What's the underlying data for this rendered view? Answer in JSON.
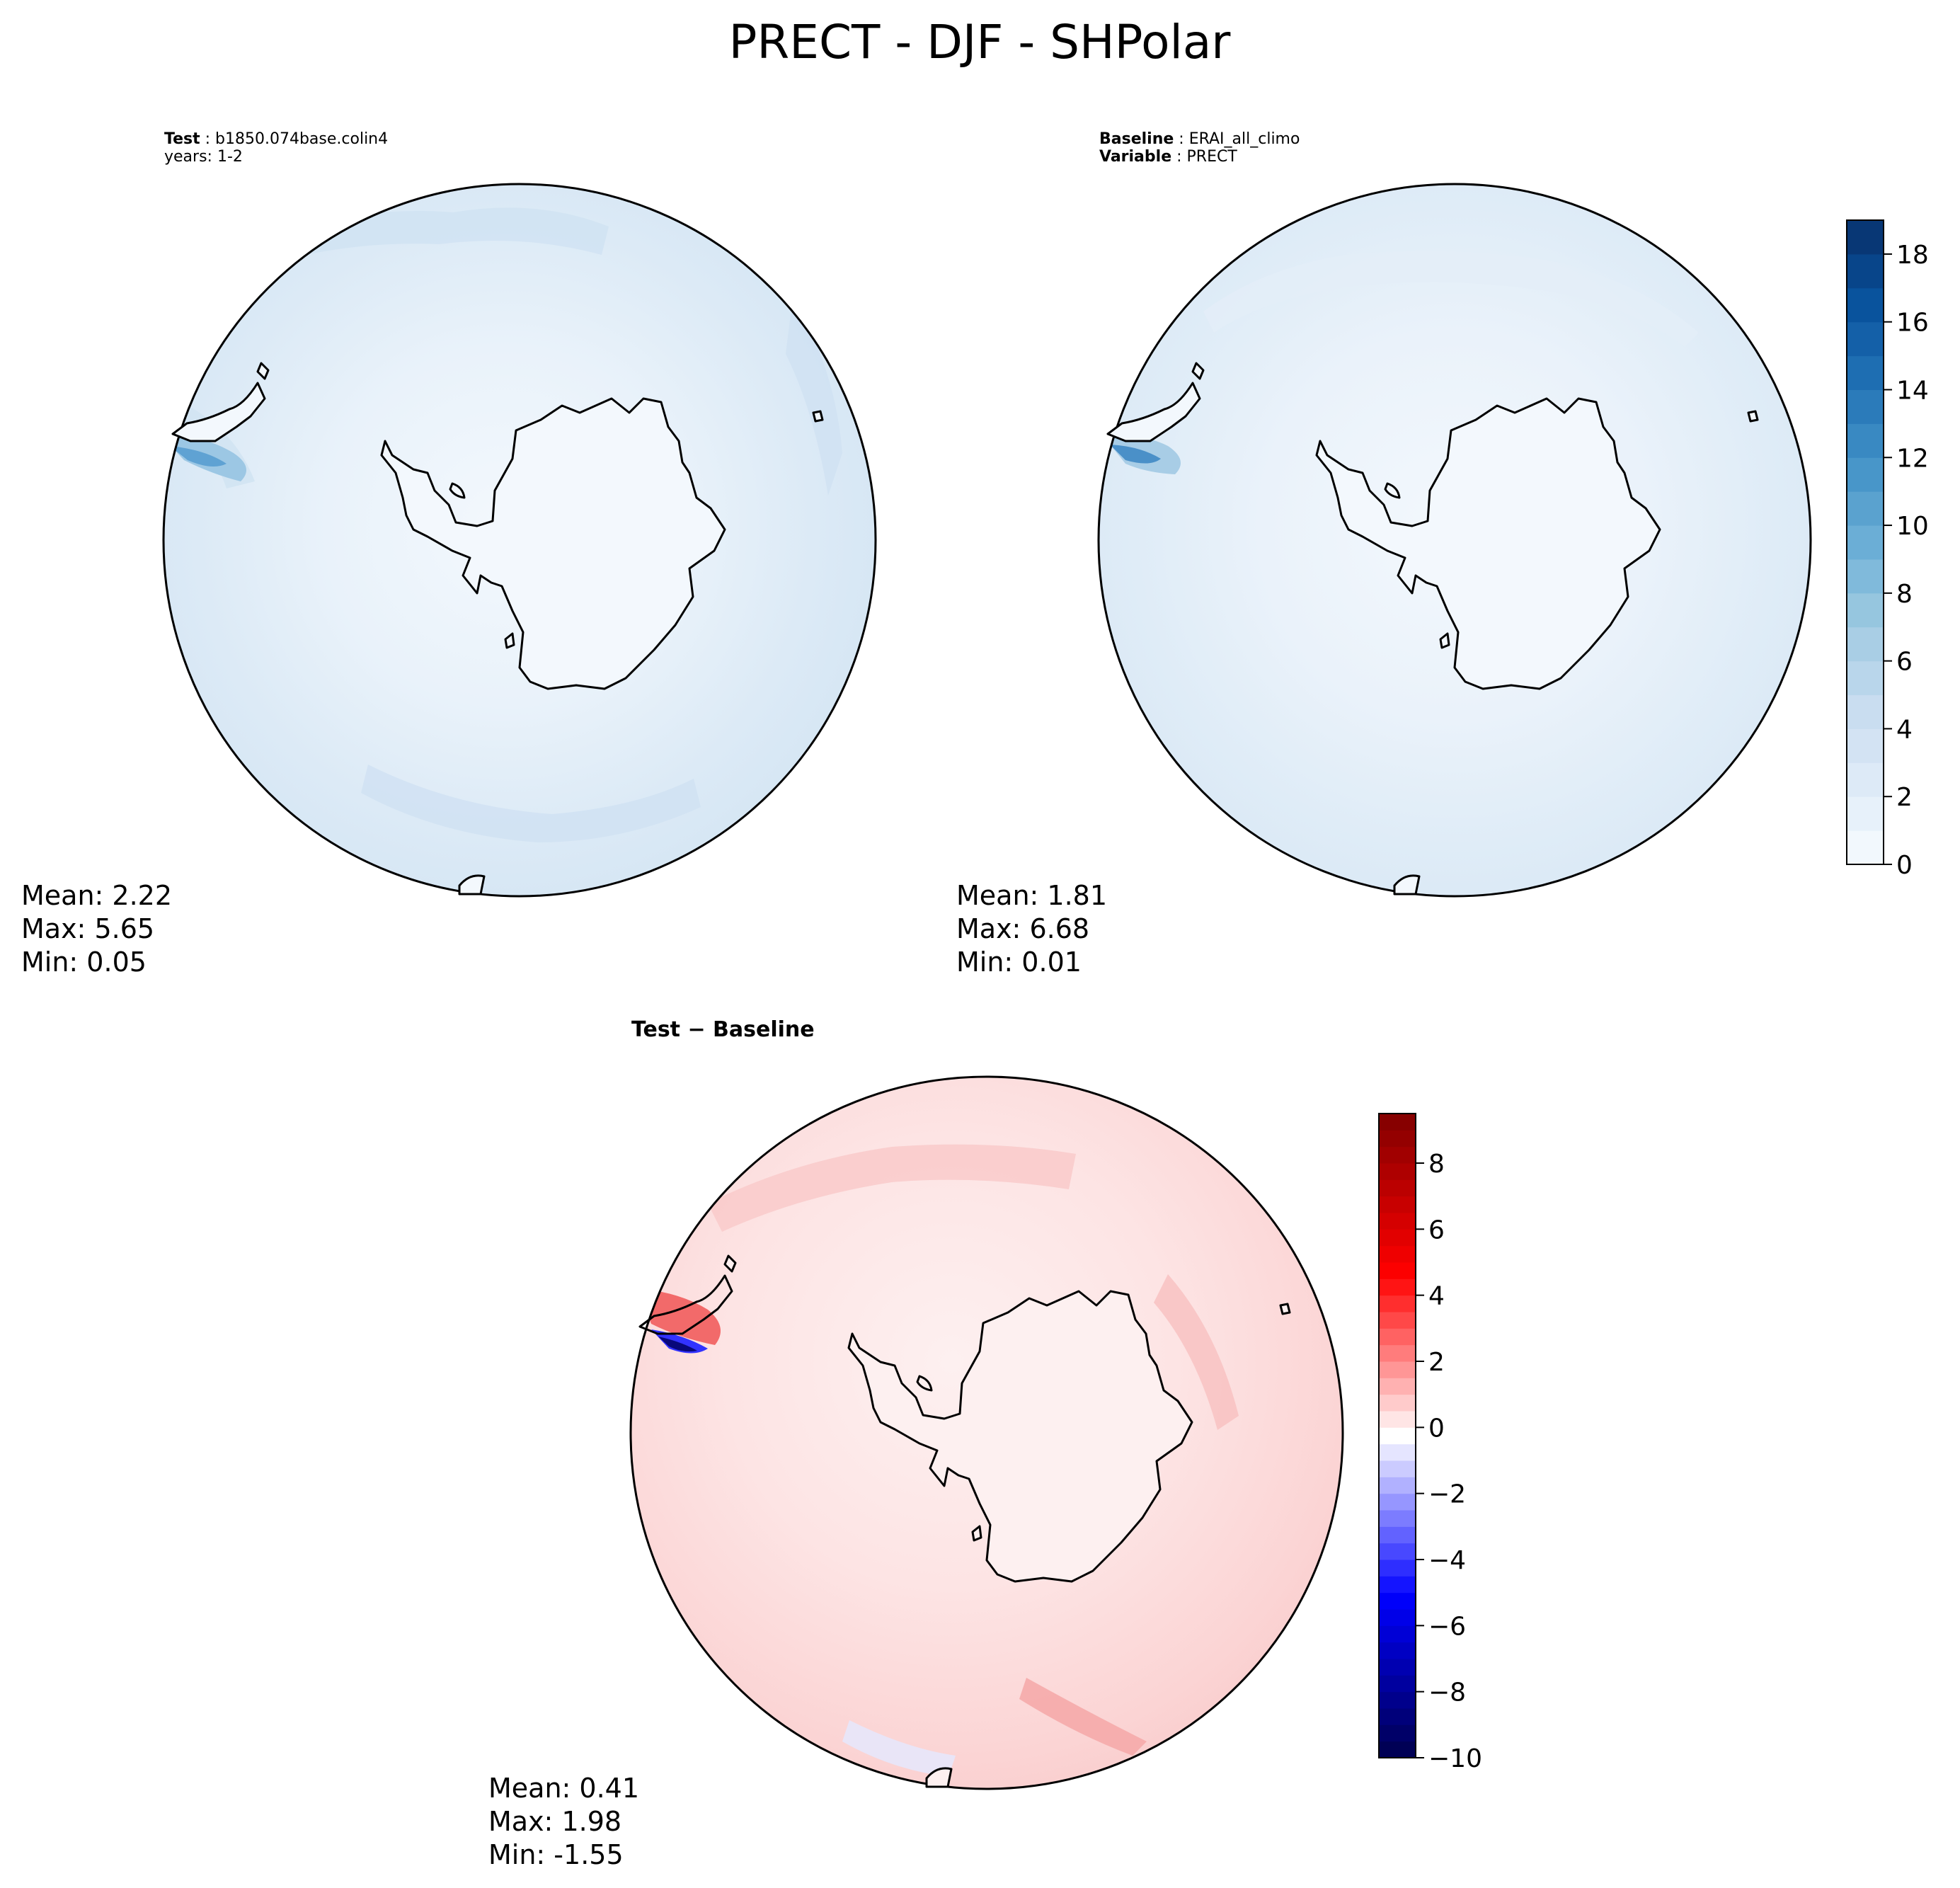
{
  "chart_data": {
    "type": "heatmap",
    "title": "PRECT - DJF - SHPolar",
    "panels": [
      {
        "id": "test",
        "header": [
          {
            "bold": "Test",
            "text": "b1850.074base.colin4"
          },
          {
            "bold": "",
            "text": "years: 1-2"
          }
        ],
        "projection": "south-polar-stereographic",
        "field": "PRECT",
        "stats": {
          "mean": 2.22,
          "max": 5.65,
          "min": 0.05
        },
        "stat_lines": [
          "Mean:  2.22",
          "Max:  5.65",
          "Min:  0.05"
        ]
      },
      {
        "id": "baseline",
        "header": [
          {
            "bold": "Baseline",
            "text": "ERAI_all_climo"
          },
          {
            "bold": "Variable",
            "text": "PRECT"
          }
        ],
        "projection": "south-polar-stereographic",
        "field": "PRECT",
        "stats": {
          "mean": 1.81,
          "max": 6.68,
          "min": 0.01
        },
        "stat_lines": [
          "Mean:  1.81",
          "Max:  6.68",
          "Min:  0.01"
        ]
      },
      {
        "id": "diff",
        "header": [
          {
            "bold": "Test − Baseline",
            "text": ""
          }
        ],
        "projection": "south-polar-stereographic",
        "field": "PRECT difference",
        "stats": {
          "mean": 0.41,
          "max": 1.98,
          "min": -1.55
        },
        "stat_lines": [
          "Mean:  0.41",
          "Max:  1.98",
          "Min: -1.55"
        ]
      }
    ],
    "colorbars": [
      {
        "id": "abs",
        "cmap": "Blues",
        "range": [
          0,
          19
        ],
        "levels": 19,
        "ticks": [
          0,
          2,
          4,
          6,
          8,
          10,
          12,
          14,
          16,
          18
        ],
        "tick_labels": [
          "0",
          "2",
          "4",
          "6",
          "8",
          "10",
          "12",
          "14",
          "16",
          "18"
        ]
      },
      {
        "id": "diff",
        "cmap": "seismic",
        "range": [
          -10,
          9.5
        ],
        "levels": 39,
        "ticks": [
          -10,
          -8,
          -6,
          -4,
          -2,
          0,
          2,
          4,
          6,
          8
        ],
        "tick_labels": [
          "−10",
          "−8",
          "−6",
          "−4",
          "−2",
          "0",
          "2",
          "4",
          "6",
          "8"
        ]
      }
    ]
  }
}
